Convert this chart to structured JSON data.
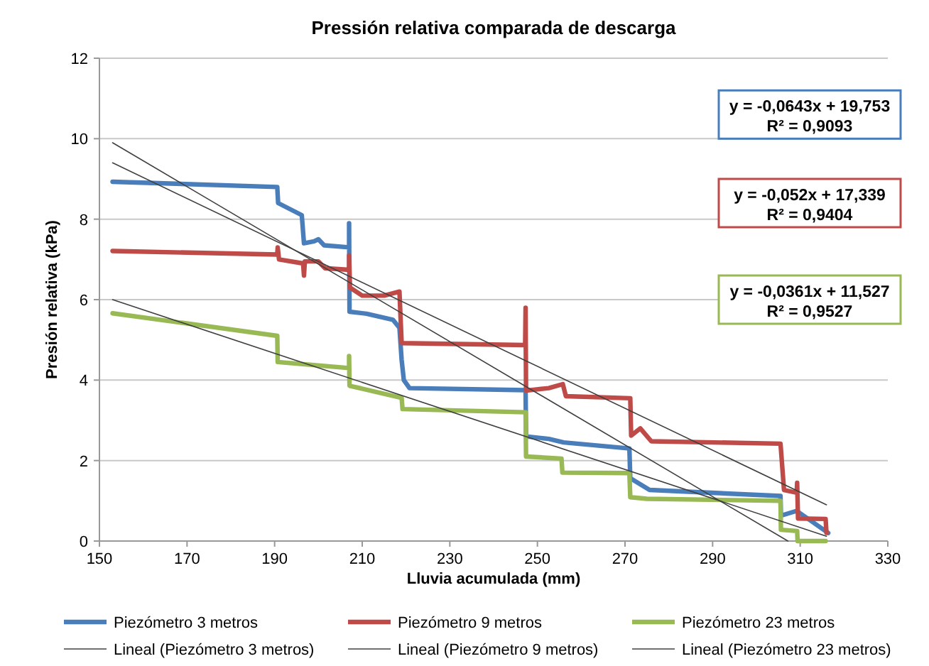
{
  "chart_data": {
    "type": "line",
    "title": "Pressión relativa comparada de descarga",
    "xlabel": "Lluvia acumulada (mm)",
    "ylabel": "Presión relativa (kPa)",
    "xlim": [
      150,
      330
    ],
    "xticks": [
      150,
      170,
      190,
      210,
      230,
      250,
      270,
      290,
      310,
      330
    ],
    "ylim": [
      0,
      12
    ],
    "yticks": [
      0,
      2,
      4,
      6,
      8,
      10,
      12
    ],
    "grid": "y",
    "legend": "bottom",
    "annotations": [
      "y = -0,0643x + 19,753\nR² = 0,9093",
      "y = -0,052x + 17,339\nR² = 0,9404",
      "y = -0,0361x + 11,527\nR² = 0,9527"
    ],
    "series": [
      {
        "name": "Piezómetro 3 metros",
        "color": "#4a7ebb",
        "x": [
          153,
          190.6,
          190.8,
          196.2,
          196.7,
          199,
          200,
          201.3,
          207,
          207,
          207.1,
          211,
          217,
          218.5,
          219,
          219.5,
          220.8,
          247.3,
          247.4,
          252.6,
          256,
          271,
          271.2,
          275.6,
          305.5,
          305.6,
          309.2,
          316.4
        ],
        "values": [
          8.93,
          8.8,
          8.4,
          8.1,
          7.4,
          7.45,
          7.5,
          7.35,
          7.3,
          7.9,
          5.7,
          5.65,
          5.5,
          5.3,
          4.5,
          4.0,
          3.8,
          3.75,
          2.6,
          2.54,
          2.45,
          2.3,
          1.56,
          1.27,
          1.12,
          0.63,
          0.75,
          0.2
        ]
      },
      {
        "name": "Piezómetro 9 metros",
        "color": "#be4b48",
        "x": [
          153,
          190.6,
          190.7,
          191,
          196.5,
          196.7,
          196.9,
          200,
          201.5,
          207,
          207,
          207.2,
          210,
          215,
          218.5,
          219,
          247.2,
          247.3,
          247.4,
          252.6,
          255.8,
          256.5,
          271.2,
          271.4,
          273.5,
          276,
          305.5,
          306.3,
          309.2,
          309.3,
          309.5,
          315.8,
          316
        ],
        "values": [
          7.21,
          7.12,
          7.3,
          7.0,
          6.9,
          6.6,
          6.95,
          6.95,
          6.78,
          6.74,
          7.1,
          6.3,
          6.1,
          6.1,
          6.2,
          4.92,
          4.87,
          5.8,
          3.74,
          3.8,
          3.9,
          3.6,
          3.55,
          2.62,
          2.8,
          2.48,
          2.42,
          1.27,
          1.2,
          1.45,
          0.56,
          0.55,
          0.2
        ]
      },
      {
        "name": "Piezómetro 23 metros",
        "color": "#98b954",
        "x": [
          153,
          190.6,
          190.7,
          207,
          207,
          207.1,
          219,
          219.2,
          247.3,
          247.4,
          255.5,
          255.7,
          271,
          271.2,
          275,
          305.5,
          305.6,
          309.3,
          309.4,
          315.8
        ],
        "values": [
          5.66,
          5.1,
          4.45,
          4.3,
          4.6,
          3.86,
          3.56,
          3.28,
          3.2,
          2.1,
          2.05,
          1.7,
          1.69,
          1.09,
          1.05,
          1.0,
          0.28,
          0.25,
          0,
          0
        ]
      },
      {
        "name": "Lineal (Piezómetro 3 metros)",
        "color": "#404040",
        "x": [
          153,
          307.2
        ],
        "values": [
          9.9,
          0.0
        ]
      },
      {
        "name": "Lineal (Piezómetro 9 metros)",
        "color": "#404040",
        "x": [
          153,
          316
        ],
        "values": [
          9.4,
          0.9
        ]
      },
      {
        "name": "Lineal (Piezómetro 23 metros)",
        "color": "#404040",
        "x": [
          153,
          316
        ],
        "values": [
          6.0,
          0.12
        ]
      }
    ]
  }
}
